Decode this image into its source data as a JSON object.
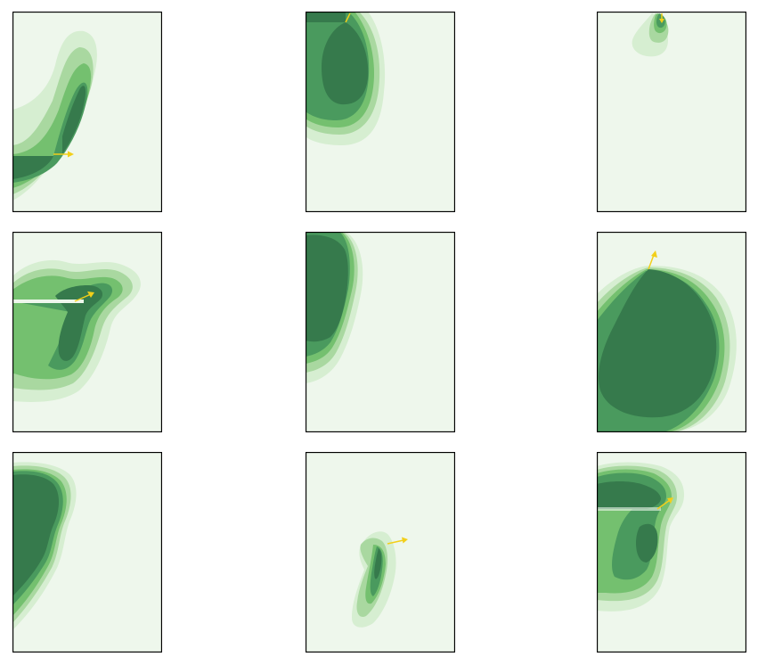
{
  "figure": {
    "rows": 3,
    "cols": 3,
    "colors": {
      "background": "#eef7ec",
      "levels": [
        "#d6eed1",
        "#a9d8a0",
        "#74c06f",
        "#4a9a5e",
        "#367a4c"
      ],
      "arrow": "#f2cf1a",
      "frame": "#000000"
    },
    "panels": [
      {
        "id": "r1c1",
        "arrow_direction": "right"
      },
      {
        "id": "r1c2",
        "arrow_direction": "up-right"
      },
      {
        "id": "r1c3",
        "arrow_direction": "down"
      },
      {
        "id": "r2c1",
        "arrow_direction": "up-right"
      },
      {
        "id": "r2c2",
        "arrow_direction": "none"
      },
      {
        "id": "r2c3",
        "arrow_direction": "up-right"
      },
      {
        "id": "r3c1",
        "arrow_direction": "none"
      },
      {
        "id": "r3c2",
        "arrow_direction": "right"
      },
      {
        "id": "r3c3",
        "arrow_direction": "up-right"
      }
    ]
  }
}
